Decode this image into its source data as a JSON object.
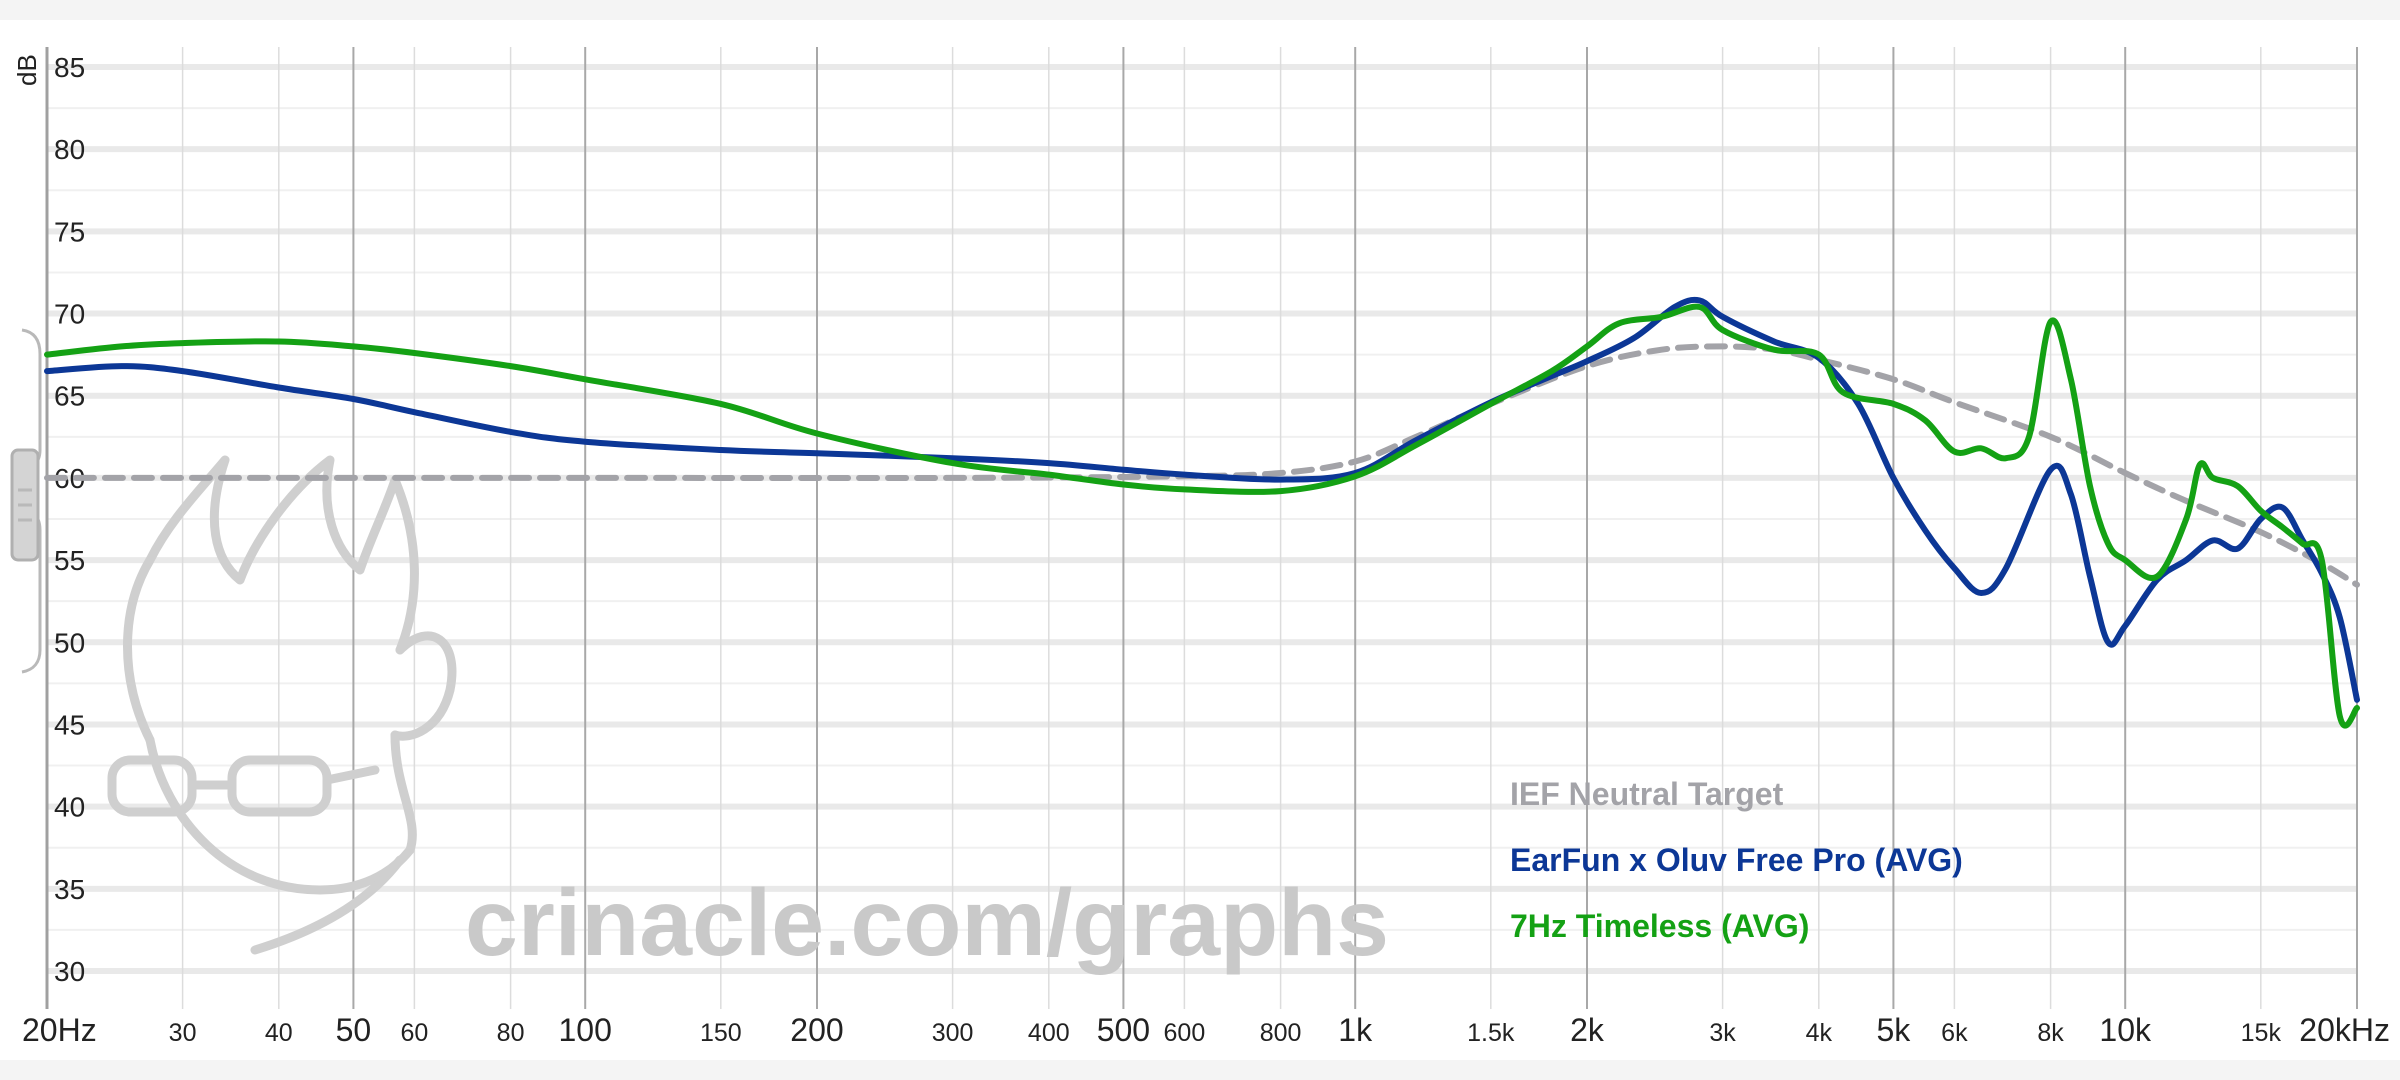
{
  "chart_data": {
    "type": "line",
    "ylabel": "dB",
    "xscale": "log",
    "xlim": [
      20,
      20000
    ],
    "ylim": [
      30,
      85
    ],
    "grid": true,
    "legend_position": "bottom-right",
    "watermark": "crinacle.com/graphs",
    "y_ticks": [
      {
        "value": 85,
        "label": "85"
      },
      {
        "value": 80,
        "label": "80"
      },
      {
        "value": 75,
        "label": "75"
      },
      {
        "value": 70,
        "label": "70"
      },
      {
        "value": 65,
        "label": "65"
      },
      {
        "value": 60,
        "label": "60"
      },
      {
        "value": 55,
        "label": "55"
      },
      {
        "value": 50,
        "label": "50"
      },
      {
        "value": 45,
        "label": "45"
      },
      {
        "value": 40,
        "label": "40"
      },
      {
        "value": 35,
        "label": "35"
      },
      {
        "value": 30,
        "label": "30"
      }
    ],
    "x_ticks": [
      {
        "value": 20,
        "label": "20Hz",
        "major": true
      },
      {
        "value": 30,
        "label": "30",
        "major": false
      },
      {
        "value": 40,
        "label": "40",
        "major": false
      },
      {
        "value": 50,
        "label": "50",
        "major": true
      },
      {
        "value": 60,
        "label": "60",
        "major": false
      },
      {
        "value": 80,
        "label": "80",
        "major": false
      },
      {
        "value": 100,
        "label": "100",
        "major": true
      },
      {
        "value": 150,
        "label": "150",
        "major": false
      },
      {
        "value": 200,
        "label": "200",
        "major": true
      },
      {
        "value": 300,
        "label": "300",
        "major": false
      },
      {
        "value": 400,
        "label": "400",
        "major": false
      },
      {
        "value": 500,
        "label": "500",
        "major": true
      },
      {
        "value": 600,
        "label": "600",
        "major": false
      },
      {
        "value": 800,
        "label": "800",
        "major": false
      },
      {
        "value": 1000,
        "label": "1k",
        "major": true
      },
      {
        "value": 1500,
        "label": "1.5k",
        "major": false
      },
      {
        "value": 2000,
        "label": "2k",
        "major": true
      },
      {
        "value": 3000,
        "label": "3k",
        "major": false
      },
      {
        "value": 4000,
        "label": "4k",
        "major": false
      },
      {
        "value": 5000,
        "label": "5k",
        "major": true
      },
      {
        "value": 6000,
        "label": "6k",
        "major": false
      },
      {
        "value": 8000,
        "label": "8k",
        "major": false
      },
      {
        "value": 10000,
        "label": "10k",
        "major": true
      },
      {
        "value": 15000,
        "label": "15k",
        "major": false
      },
      {
        "value": 20000,
        "label": "20kHz",
        "major": true
      }
    ],
    "series": [
      {
        "name": "IEF Neutral Target",
        "color": "#a3a3a8",
        "dashed": true,
        "points": [
          [
            20,
            60
          ],
          [
            100,
            60
          ],
          [
            300,
            60
          ],
          [
            600,
            60.1
          ],
          [
            800,
            60.3
          ],
          [
            1000,
            61
          ],
          [
            1200,
            62.5
          ],
          [
            1500,
            64.5
          ],
          [
            2000,
            66.8
          ],
          [
            2500,
            67.8
          ],
          [
            3000,
            68
          ],
          [
            3500,
            67.8
          ],
          [
            4000,
            67.2
          ],
          [
            5000,
            66
          ],
          [
            6000,
            64.6
          ],
          [
            8000,
            62.5
          ],
          [
            10000,
            60.3
          ],
          [
            12000,
            58.6
          ],
          [
            15000,
            56.7
          ],
          [
            18000,
            54.8
          ],
          [
            20000,
            53.5
          ]
        ]
      },
      {
        "name": "EarFun x Oluv Free Pro (AVG)",
        "color": "#0c3796",
        "dashed": false,
        "points": [
          [
            20,
            66.5
          ],
          [
            25,
            66.8
          ],
          [
            30,
            66.5
          ],
          [
            40,
            65.5
          ],
          [
            50,
            64.8
          ],
          [
            60,
            64
          ],
          [
            80,
            62.8
          ],
          [
            100,
            62.2
          ],
          [
            150,
            61.7
          ],
          [
            200,
            61.5
          ],
          [
            300,
            61.2
          ],
          [
            400,
            60.9
          ],
          [
            500,
            60.5
          ],
          [
            600,
            60.2
          ],
          [
            800,
            59.9
          ],
          [
            1000,
            60.3
          ],
          [
            1200,
            62.3
          ],
          [
            1500,
            64.6
          ],
          [
            1800,
            66.2
          ],
          [
            2000,
            67.1
          ],
          [
            2300,
            68.5
          ],
          [
            2600,
            70.4
          ],
          [
            2800,
            70.8
          ],
          [
            3000,
            69.8
          ],
          [
            3500,
            68.3
          ],
          [
            4000,
            67.3
          ],
          [
            4500,
            64.5
          ],
          [
            5000,
            60
          ],
          [
            5500,
            56.8
          ],
          [
            6000,
            54.5
          ],
          [
            6500,
            53
          ],
          [
            7000,
            54.5
          ],
          [
            8000,
            60.5
          ],
          [
            8500,
            59
          ],
          [
            9000,
            54
          ],
          [
            9500,
            50
          ],
          [
            10000,
            51
          ],
          [
            11000,
            53.8
          ],
          [
            12000,
            55
          ],
          [
            13000,
            56.2
          ],
          [
            14000,
            55.7
          ],
          [
            15000,
            57.5
          ],
          [
            16000,
            58.2
          ],
          [
            17000,
            56.2
          ],
          [
            18000,
            54.2
          ],
          [
            19000,
            51.5
          ],
          [
            20000,
            46.5
          ]
        ]
      },
      {
        "name": "7Hz Timeless (AVG)",
        "color": "#14a114",
        "dashed": false,
        "points": [
          [
            20,
            67.5
          ],
          [
            25,
            68
          ],
          [
            30,
            68.2
          ],
          [
            40,
            68.3
          ],
          [
            50,
            68
          ],
          [
            60,
            67.6
          ],
          [
            80,
            66.8
          ],
          [
            100,
            66
          ],
          [
            150,
            64.5
          ],
          [
            200,
            62.7
          ],
          [
            300,
            60.9
          ],
          [
            400,
            60.2
          ],
          [
            500,
            59.6
          ],
          [
            600,
            59.3
          ],
          [
            800,
            59.2
          ],
          [
            1000,
            60.1
          ],
          [
            1200,
            62
          ],
          [
            1500,
            64.5
          ],
          [
            1800,
            66.5
          ],
          [
            2000,
            68
          ],
          [
            2200,
            69.4
          ],
          [
            2500,
            69.8
          ],
          [
            2800,
            70.4
          ],
          [
            3000,
            69
          ],
          [
            3500,
            67.8
          ],
          [
            4000,
            67.5
          ],
          [
            4300,
            65.2
          ],
          [
            5000,
            64.5
          ],
          [
            5500,
            63.5
          ],
          [
            6000,
            61.6
          ],
          [
            6500,
            61.8
          ],
          [
            7000,
            61.2
          ],
          [
            7500,
            62.5
          ],
          [
            8000,
            69.5
          ],
          [
            8500,
            66
          ],
          [
            9000,
            59.5
          ],
          [
            9500,
            56
          ],
          [
            10000,
            55
          ],
          [
            11000,
            54
          ],
          [
            12000,
            57.5
          ],
          [
            12500,
            60.8
          ],
          [
            13000,
            60
          ],
          [
            14000,
            59.5
          ],
          [
            15000,
            58
          ],
          [
            16000,
            57
          ],
          [
            17000,
            56
          ],
          [
            18000,
            55
          ],
          [
            19000,
            45.5
          ],
          [
            20000,
            46
          ]
        ]
      }
    ]
  }
}
